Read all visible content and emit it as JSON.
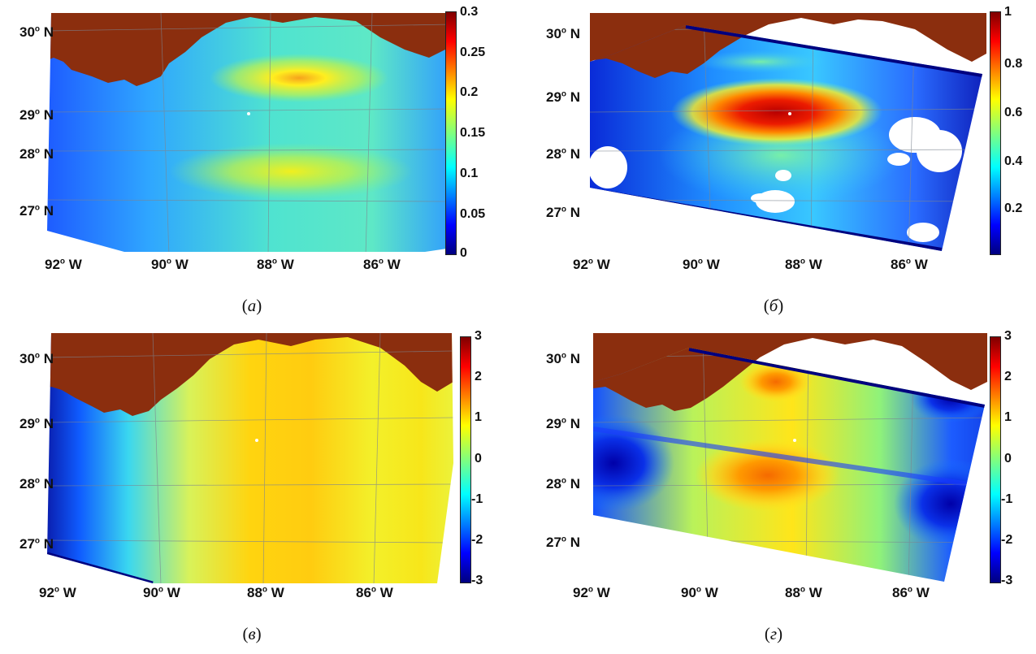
{
  "panels": [
    {
      "id": "a",
      "caption_letter": "а",
      "lat_labels": [
        "30",
        "29",
        "28",
        "27"
      ],
      "lon_labels": [
        "92",
        "90",
        "88",
        "86"
      ],
      "lat_suffix": "N",
      "lon_suffix": "W",
      "colorbar_ticks": [
        "0.3",
        "0.25",
        "0.2",
        "0.15",
        "0.1",
        "0.05",
        "0"
      ],
      "colorbar_range": [
        0,
        0.3
      ]
    },
    {
      "id": "b",
      "caption_letter": "б",
      "lat_labels": [
        "30",
        "29",
        "28",
        "27"
      ],
      "lon_labels": [
        "92",
        "90",
        "88",
        "86"
      ],
      "lat_suffix": "N",
      "lon_suffix": "W",
      "colorbar_ticks": [
        "1",
        "0.8",
        "0.6",
        "0.4",
        "0.2"
      ],
      "colorbar_range": [
        0,
        1
      ]
    },
    {
      "id": "c",
      "caption_letter": "в",
      "lat_labels": [
        "30",
        "29",
        "28",
        "27"
      ],
      "lon_labels": [
        "92",
        "90",
        "88",
        "86"
      ],
      "lat_suffix": "N",
      "lon_suffix": "W",
      "colorbar_ticks": [
        "3",
        "2",
        "1",
        "0",
        "-1",
        "-2",
        "-3"
      ],
      "colorbar_range": [
        -3,
        3
      ]
    },
    {
      "id": "d",
      "caption_letter": "г",
      "lat_labels": [
        "30",
        "29",
        "28",
        "27"
      ],
      "lon_labels": [
        "92",
        "90",
        "88",
        "86"
      ],
      "lat_suffix": "N",
      "lon_suffix": "W",
      "colorbar_ticks": [
        "3",
        "2",
        "1",
        "0",
        "-1",
        "-2",
        "-3"
      ],
      "colorbar_range": [
        -3,
        3
      ]
    }
  ],
  "colormap": "jet",
  "colors": {
    "land": "#8b2e0e",
    "grid": "#9aa0a6",
    "jet": [
      "#00007f",
      "#0000ff",
      "#007fff",
      "#00ffff",
      "#7fff7f",
      "#ffff00",
      "#ff7f00",
      "#ff0000",
      "#7f0000"
    ]
  }
}
